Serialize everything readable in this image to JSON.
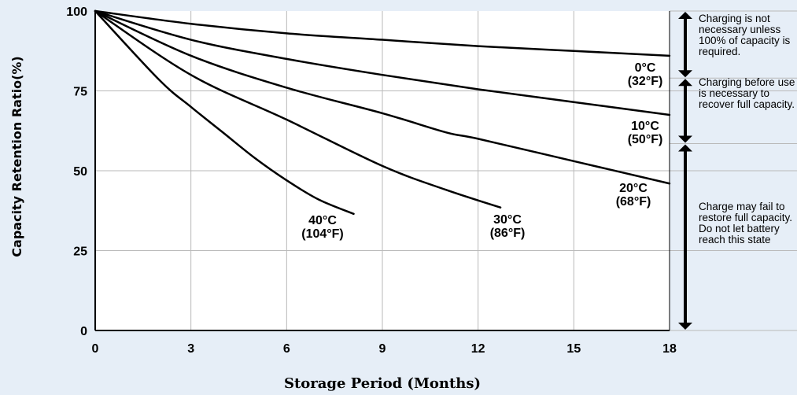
{
  "chart_data": {
    "type": "line",
    "xlabel": "Storage Period (Months)",
    "ylabel": "Capacity Retention Ratio(%)",
    "xlim": [
      0,
      18
    ],
    "ylim": [
      0,
      100
    ],
    "x_ticks": [
      "0",
      "3",
      "6",
      "9",
      "12",
      "15",
      "18"
    ],
    "y_ticks": [
      "0",
      "25",
      "50",
      "75",
      "100"
    ],
    "grid": true,
    "series": [
      {
        "name": "0°C (32°F)",
        "label_lines": [
          "0°C",
          "(32°F)"
        ],
        "x": [
          0,
          3,
          6,
          9,
          12,
          15,
          18
        ],
        "y": [
          100,
          96,
          93,
          91,
          89,
          87.5,
          86
        ]
      },
      {
        "name": "10°C (50°F)",
        "label_lines": [
          "10°C",
          "(50°F)"
        ],
        "x": [
          0,
          3,
          6,
          9,
          12,
          15,
          18
        ],
        "y": [
          100,
          91,
          85,
          80,
          75.5,
          71.5,
          67.5
        ]
      },
      {
        "name": "20°C (68°F)",
        "label_lines": [
          "20°C",
          "(68°F)"
        ],
        "x": [
          0,
          3,
          6,
          9,
          11,
          12,
          15,
          18
        ],
        "y": [
          100,
          86,
          76,
          68,
          62,
          60,
          53,
          46
        ]
      },
      {
        "name": "30°C (86°F)",
        "label_lines": [
          "30°C",
          "(86°F)"
        ],
        "x": [
          0,
          3,
          6,
          9,
          11,
          12.7
        ],
        "y": [
          100,
          80,
          66,
          51.5,
          44,
          38.5
        ]
      },
      {
        "name": "40°C (104°F)",
        "label_lines": [
          "40°C",
          "(104°F)"
        ],
        "x": [
          0,
          2,
          3,
          4,
          5,
          6,
          7,
          8.1
        ],
        "y": [
          100,
          78.5,
          70,
          62,
          54,
          47,
          41,
          36.5
        ]
      }
    ],
    "zones": [
      {
        "text": "Charging is not necessary unless 100% of capacity is required.",
        "from": 100,
        "to": 79
      },
      {
        "text": "Charging before use is necessary to recover full capacity.",
        "from": 79,
        "to": 58.5
      },
      {
        "text": "Charge may fail to restore full capacity. Do not let battery reach this state",
        "from": 58.5,
        "to": 0
      }
    ]
  }
}
